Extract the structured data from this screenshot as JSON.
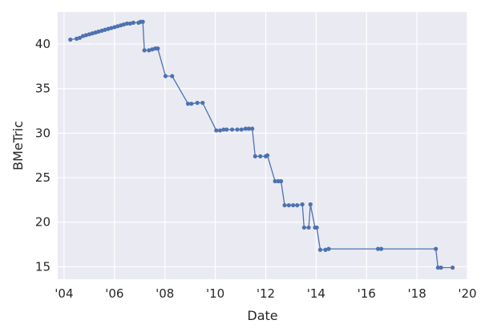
{
  "chart_data": {
    "type": "line",
    "title": "",
    "xlabel": "Date",
    "ylabel": "BMeTric",
    "xlim": [
      "2003-10-01",
      "2020-01-01"
    ],
    "ylim": [
      13.6,
      43.6
    ],
    "x_ticks": [
      "2004-01-01",
      "2006-01-01",
      "2008-01-01",
      "2010-01-01",
      "2012-01-01",
      "2014-01-01",
      "2016-01-01",
      "2018-01-01",
      "2020-01-01"
    ],
    "x_tick_labels": [
      "'04",
      "'06",
      "'08",
      "'10",
      "'12",
      "'14",
      "'16",
      "'18",
      "'20"
    ],
    "y_ticks": [
      15,
      20,
      25,
      30,
      35,
      40
    ],
    "y_tick_labels": [
      "15",
      "20",
      "25",
      "30",
      "35",
      "40"
    ],
    "grid": true,
    "colors": {
      "background": "#eaeaf2",
      "grid": "#ffffff",
      "series": "#4c72b0"
    },
    "series": [
      {
        "x": [
          "2004-04-01",
          "2004-07-01",
          "2004-08-15",
          "2004-10-01",
          "2004-11-15",
          "2005-01-01",
          "2005-02-15",
          "2005-04-01",
          "2005-05-15",
          "2005-07-01",
          "2005-08-15",
          "2005-10-01",
          "2005-11-15",
          "2006-01-01",
          "2006-02-15",
          "2006-04-01",
          "2006-05-15",
          "2006-07-01",
          "2006-08-15",
          "2006-10-01",
          "2006-12-15",
          "2007-01-15",
          "2007-02-15",
          "2007-03-10",
          "2007-05-15",
          "2007-07-01",
          "2007-08-15",
          "2007-09-20",
          "2008-01-10",
          "2008-04-15",
          "2008-12-01",
          "2009-01-20",
          "2009-04-15",
          "2009-07-01",
          "2010-01-15",
          "2010-03-10",
          "2010-05-01",
          "2010-06-15",
          "2010-09-01",
          "2010-11-15",
          "2011-01-15",
          "2011-03-15",
          "2011-05-01",
          "2011-06-20",
          "2011-08-01",
          "2011-10-15",
          "2012-01-01",
          "2012-01-25",
          "2012-05-15",
          "2012-07-01",
          "2012-08-10",
          "2012-10-01",
          "2012-12-01",
          "2013-02-01",
          "2013-04-01",
          "2013-06-15",
          "2013-07-10",
          "2013-09-15",
          "2013-10-10",
          "2013-12-15",
          "2014-01-10",
          "2014-03-01",
          "2014-05-15",
          "2014-07-01",
          "2016-06-15",
          "2016-08-01",
          "2018-10-01",
          "2018-11-01",
          "2018-12-15",
          "2019-06-01"
        ],
        "y": [
          40.5,
          40.6,
          40.7,
          40.9,
          41.0,
          41.1,
          41.2,
          41.3,
          41.4,
          41.5,
          41.6,
          41.7,
          41.8,
          41.9,
          42.0,
          42.1,
          42.2,
          42.3,
          42.3,
          42.4,
          42.4,
          42.5,
          42.5,
          39.3,
          39.3,
          39.4,
          39.5,
          39.5,
          36.4,
          36.4,
          33.3,
          33.3,
          33.4,
          33.4,
          30.3,
          30.3,
          30.4,
          30.4,
          30.4,
          30.4,
          30.4,
          30.5,
          30.5,
          30.5,
          27.4,
          27.4,
          27.4,
          27.5,
          24.6,
          24.6,
          24.6,
          21.9,
          21.9,
          21.9,
          21.9,
          22.0,
          19.4,
          19.4,
          22.0,
          19.4,
          19.4,
          16.9,
          16.9,
          17.0,
          17.0,
          17.0,
          17.0,
          14.9,
          14.9,
          14.9
        ]
      }
    ]
  }
}
